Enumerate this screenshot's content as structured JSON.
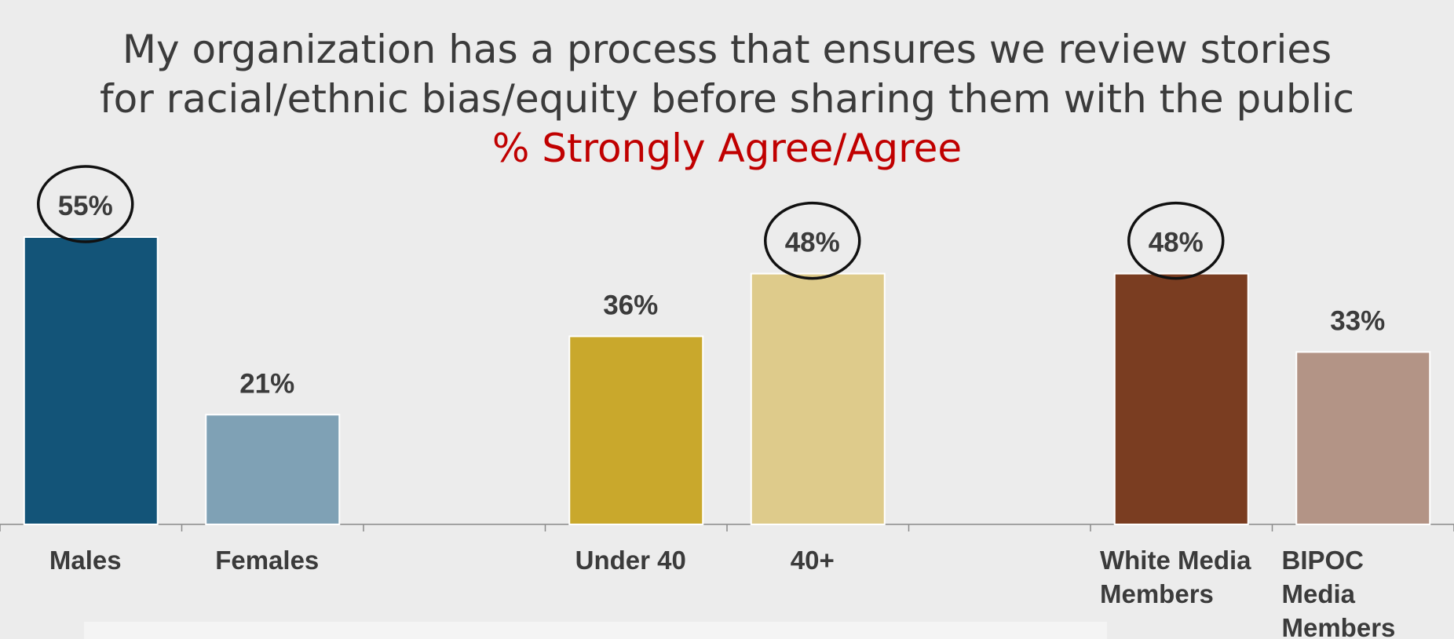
{
  "chart_data": {
    "type": "bar",
    "title": "My organization has a process that ensures we review stories",
    "title_line2": "for racial/ethnic bias/equity before sharing them with the public",
    "subtitle": "% Strongly Agree/Agree",
    "categories": [
      "Males",
      "Females",
      "",
      "Under 40",
      "40+",
      "",
      "White Media Members",
      "BIPOC Media Members"
    ],
    "category_lines": [
      [
        "Males"
      ],
      [
        "Females"
      ],
      [],
      [
        "Under 40"
      ],
      [
        "40+"
      ],
      [],
      [
        "White Media",
        "Members"
      ],
      [
        "BIPOC",
        "Media",
        "Members"
      ]
    ],
    "values": [
      55,
      21,
      null,
      36,
      48,
      null,
      48,
      33
    ],
    "value_labels": [
      "55%",
      "21%",
      "",
      "36%",
      "48%",
      "",
      "48%",
      "33%"
    ],
    "highlighted": [
      true,
      false,
      false,
      false,
      true,
      false,
      true,
      false
    ],
    "colors": [
      "#135478",
      "#7fa1b5",
      null,
      "#c9a82c",
      "#decb8b",
      null,
      "#7a3d21",
      "#b39486"
    ],
    "ylim": [
      0,
      65
    ],
    "grid": false,
    "legend": "none"
  }
}
